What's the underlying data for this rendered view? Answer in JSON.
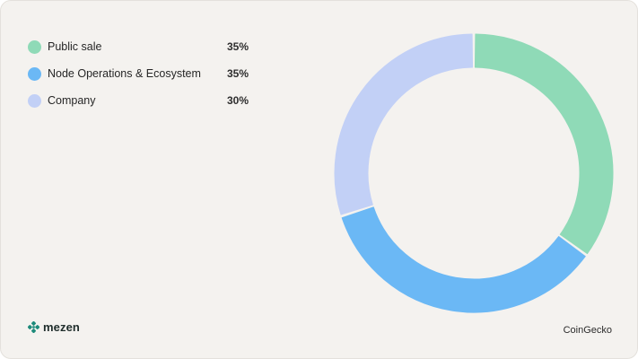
{
  "chart_data": {
    "type": "pie",
    "variant": "donut",
    "categories": [
      "Public sale",
      "Node Operations & Ecosystem",
      "Company"
    ],
    "values": [
      35,
      35,
      30
    ],
    "value_labels": [
      "35%",
      "35%",
      "30%"
    ],
    "colors": [
      "#8fdab7",
      "#6bb8f5",
      "#c2d0f6"
    ],
    "legend_position": "top-left"
  },
  "background": "#f4f2ef",
  "brand": {
    "name": "mezen",
    "icon": "mezen-logo-icon",
    "color": "#1d8a7a"
  },
  "source": "CoinGecko"
}
